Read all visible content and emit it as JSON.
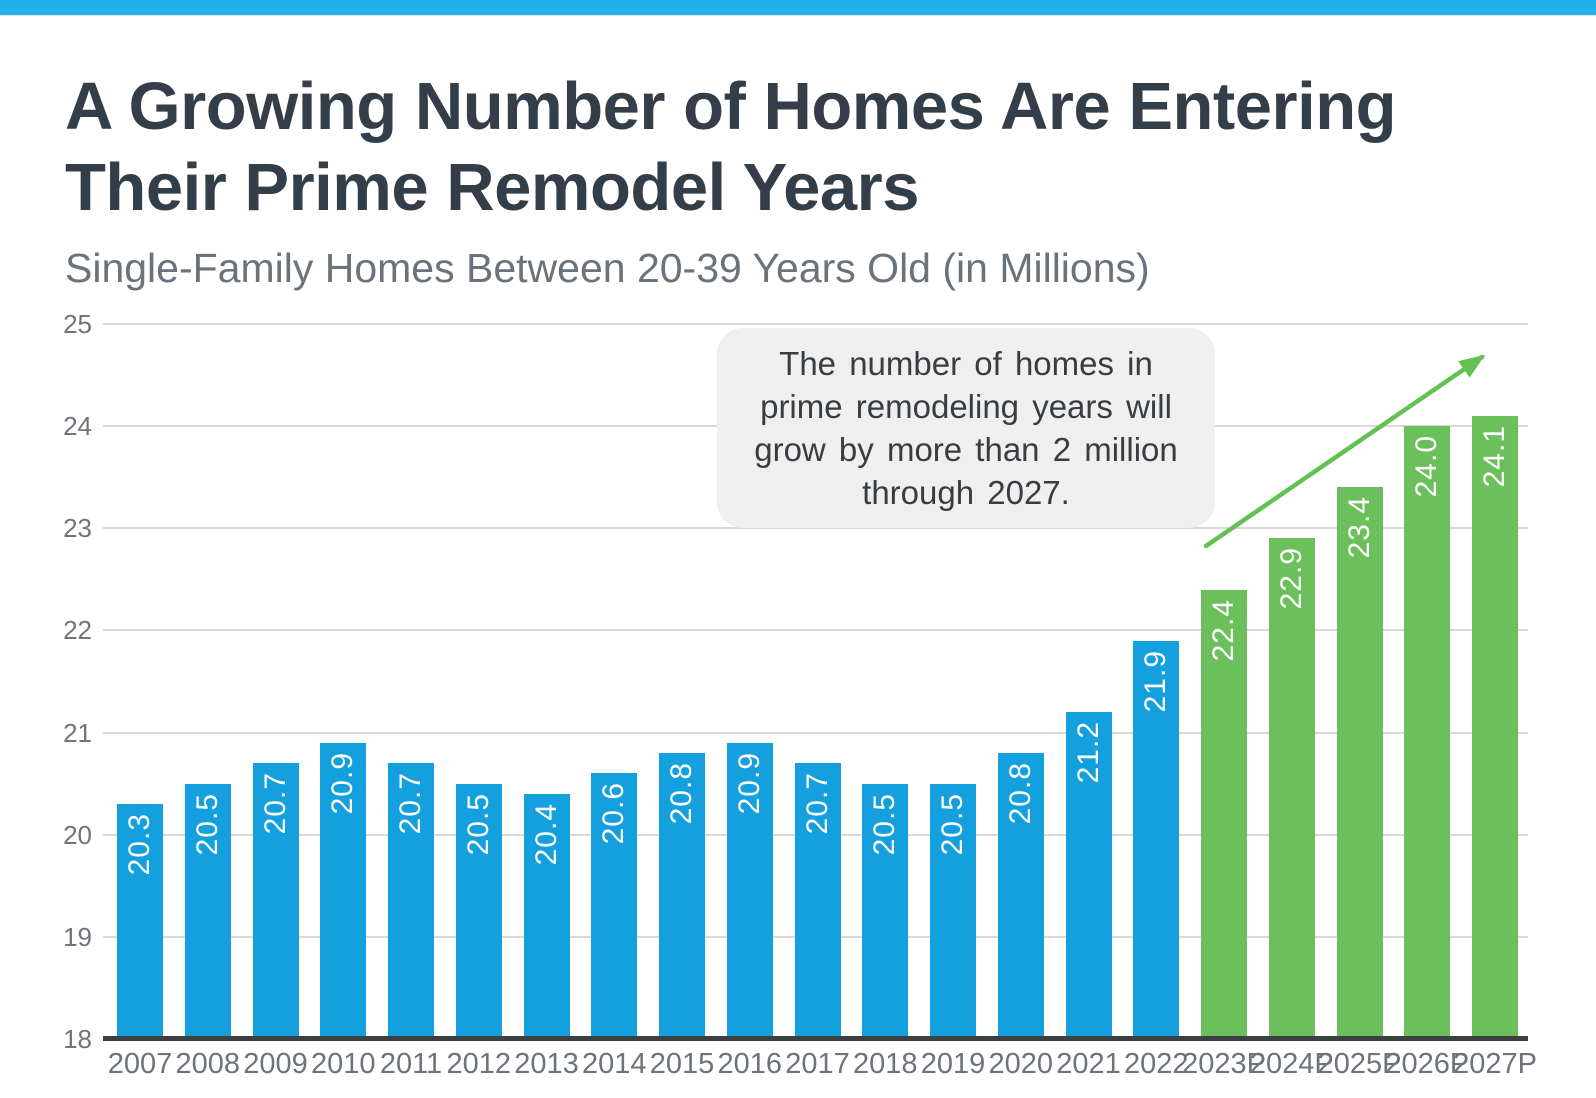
{
  "page": {
    "top_strip_color": "#22b1ea",
    "background_color": "#ffffff"
  },
  "title": {
    "line1": "A Growing Number of Homes Are Entering",
    "line2": "Their Prime Remodel Years",
    "color": "#333e48"
  },
  "subtitle": {
    "text": "Single-Family Homes Between 20-39 Years Old (in Millions)",
    "color": "#6a737b"
  },
  "callout": {
    "lines": [
      "The number of homes in",
      "prime remodeling years will",
      "grow by more than 2 million",
      "through 2027."
    ],
    "background": "#efefef",
    "text_color": "#383d42"
  },
  "chart_data": {
    "type": "bar",
    "title": "A Growing Number of Homes Are Entering Their Prime Remodel Years",
    "subtitle": "Single-Family Homes Between 20-39 Years Old (in Millions)",
    "categories": [
      "2007",
      "2008",
      "2009",
      "2010",
      "2011",
      "2012",
      "2013",
      "2014",
      "2015",
      "2016",
      "2017",
      "2018",
      "2019",
      "2020",
      "2021",
      "2022",
      "2023P",
      "2024P",
      "2025P",
      "2026P",
      "2027P"
    ],
    "values": [
      20.3,
      20.5,
      20.7,
      20.9,
      20.7,
      20.5,
      20.4,
      20.6,
      20.8,
      20.9,
      20.7,
      20.5,
      20.5,
      20.8,
      21.2,
      21.9,
      22.4,
      22.9,
      23.4,
      24.0,
      24.1
    ],
    "labels": [
      "20.3",
      "20.5",
      "20.7",
      "20.9",
      "20.7",
      "20.5",
      "20.4",
      "20.6",
      "20.8",
      "20.9",
      "20.7",
      "20.5",
      "20.5",
      "20.8",
      "21.2",
      "21.9",
      "22.4",
      "22.9",
      "23.4",
      "24.0",
      "24.1"
    ],
    "bar_styles": {
      "actual_color": "#14a0de",
      "projected_color": "#6cc05c",
      "projected_start_index": 16
    },
    "data_labels": {
      "color": "#ffffff",
      "rotation_degrees": -90
    },
    "xlabel": "",
    "ylabel": "",
    "ylim": [
      18,
      25
    ],
    "yticks": [
      18,
      19,
      20,
      21,
      22,
      23,
      24,
      25
    ],
    "grid": true,
    "legend": "none",
    "axis": {
      "gridline_color": "#d9d9d9",
      "baseline_color": "#3c4043",
      "tick_label_color": "#6f757b",
      "x_label_color": "#6d737a"
    },
    "annotation": {
      "text": "The number of homes in prime remodeling years will grow by more than 2 million through 2027."
    },
    "trend_arrow": {
      "color": "#62c150",
      "direction": "up-right"
    }
  }
}
